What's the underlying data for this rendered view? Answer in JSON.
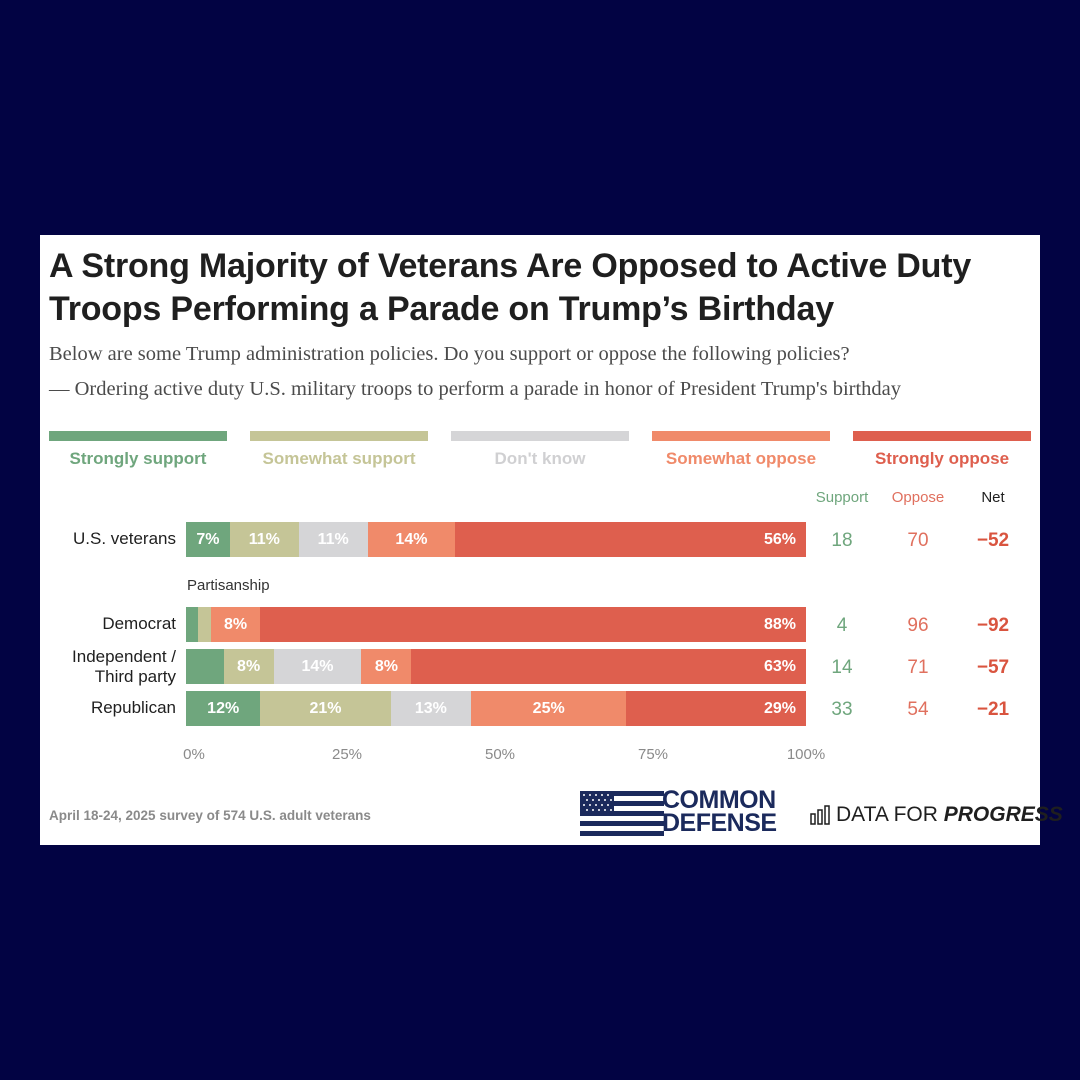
{
  "colors": {
    "background": "#020343",
    "strongly_support": "#6FA67D",
    "somewhat_support": "#C5C597",
    "dont_know": "#D5D5D7",
    "somewhat_oppose": "#F08A6A",
    "strongly_oppose": "#DE5F4E",
    "support_text": "#6FA67D",
    "oppose_text": "#E0705E",
    "net_text": "#D9543F"
  },
  "title": "A Strong Majority of Veterans Are Opposed to Active Duty Troops Performing a Parade on Trump’s Birthday",
  "subtitle_1": "Below are some Trump administration policies. Do you support or oppose the following policies?",
  "subtitle_2": "— Ordering active duty U.S. military troops to perform a parade in honor of President Trump's birthday",
  "column_headers": {
    "support": "Support",
    "oppose": "Oppose",
    "net": "Net"
  },
  "footnote": "April 18-24, 2025 survey of 574 U.S. adult veterans",
  "logos": {
    "common_defense_line1": "COMMON",
    "common_defense_line2": "DEFENSE",
    "data_for_progress_1": "DATA FOR",
    "data_for_progress_2": "PROGRESS"
  },
  "chart_data": {
    "type": "bar",
    "orientation": "horizontal",
    "stacked": true,
    "title": "A Strong Majority of Veterans Are Opposed to Active Duty Troops Performing a Parade on Trump’s Birthday",
    "legend_position": "top",
    "categories": [
      "U.S. veterans",
      "Democrat",
      "Independent / Third party",
      "Republican"
    ],
    "group_label": "Partisanship",
    "series": [
      {
        "name": "Strongly support",
        "values": [
          7,
          2,
          6,
          12
        ],
        "labels": [
          "7%",
          "",
          "",
          "12%"
        ]
      },
      {
        "name": "Somewhat support",
        "values": [
          11,
          2,
          8,
          21
        ],
        "labels": [
          "11%",
          "",
          "8%",
          "21%"
        ]
      },
      {
        "name": "Don't know",
        "values": [
          11,
          0,
          14,
          13
        ],
        "labels": [
          "11%",
          "",
          "14%",
          "13%"
        ]
      },
      {
        "name": "Somewhat oppose",
        "values": [
          14,
          8,
          8,
          25
        ],
        "labels": [
          "14%",
          "8%",
          "8%",
          "25%"
        ]
      },
      {
        "name": "Strongly oppose",
        "values": [
          56,
          88,
          63,
          29
        ],
        "labels": [
          "56%",
          "88%",
          "63%",
          "29%"
        ]
      }
    ],
    "summary": {
      "support": [
        "18",
        "4",
        "14",
        "33"
      ],
      "oppose": [
        "70",
        "96",
        "71",
        "54"
      ],
      "net": [
        "−52",
        "−92",
        "−57",
        "−21"
      ]
    },
    "xlim": [
      0,
      100
    ],
    "ticks": [
      "0%",
      "25%",
      "50%",
      "75%",
      "100%"
    ],
    "grid": false
  }
}
